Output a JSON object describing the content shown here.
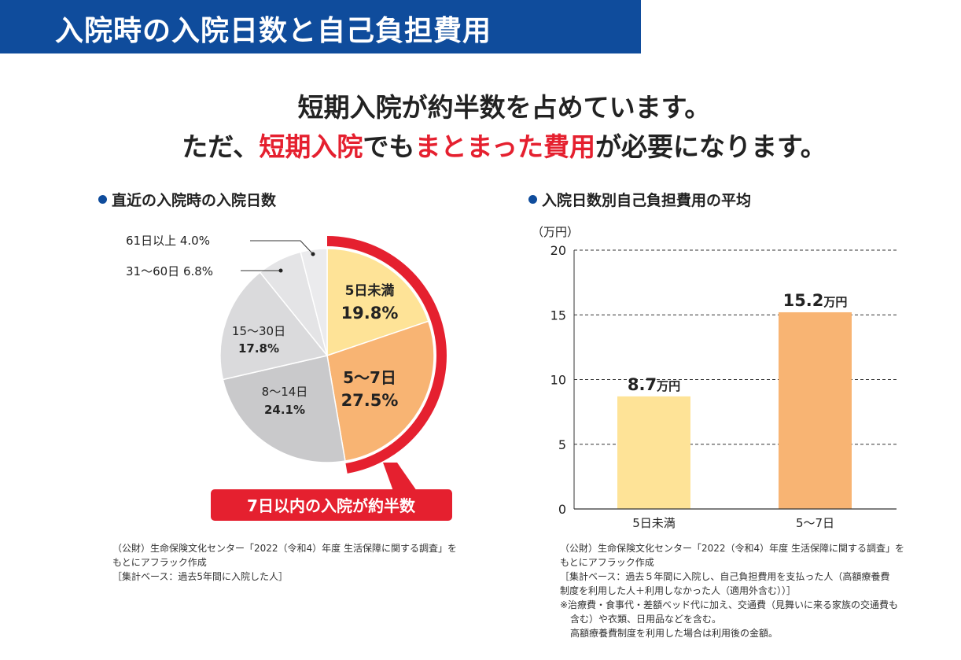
{
  "header": {
    "title": "入院時の入院日数と自己負担費用"
  },
  "lead": {
    "line1": "短期入院が約半数を占めています。",
    "line2_parts": [
      "ただ、",
      "短期入院",
      "でも",
      "まとまった費用",
      "が必要になります。"
    ]
  },
  "colors": {
    "brand_blue": "#0f4c9c",
    "accent_red": "#e5202f",
    "yellow": "#fee397",
    "orange": "#f8b473",
    "gray1": "#c9c9cb",
    "gray2": "#dadadc",
    "gray3": "#e4e4e6",
    "gray4": "#ebebed"
  },
  "chart_data": [
    {
      "type": "pie",
      "title": "直近の入院時の入院日数",
      "slices": [
        {
          "label": "5日未満",
          "value": 19.8,
          "value_label": "19.8%",
          "color": "#fee397"
        },
        {
          "label": "5〜7日",
          "value": 27.5,
          "value_label": "27.5%",
          "color": "#f8b473"
        },
        {
          "label": "8〜14日",
          "value": 24.1,
          "value_label": "24.1%",
          "color": "#c9c9cb"
        },
        {
          "label": "15〜30日",
          "value": 17.8,
          "value_label": "17.8%",
          "color": "#dadadc"
        },
        {
          "label": "31〜60日",
          "value": 6.8,
          "value_label": "6.8%",
          "color": "#e4e4e6"
        },
        {
          "label": "61日以上",
          "value": 4.0,
          "value_label": "4.0%",
          "color": "#ebebed"
        }
      ],
      "highlight": "7日以内の入院が約半数",
      "source": [
        "（公財）生命保険文化センター「2022（令和4）年度 生活保障に関する調査」を",
        "もとにアフラック作成",
        "［集計ベース：過去5年間に入院した人］"
      ]
    },
    {
      "type": "bar",
      "title": "入院日数別自己負担費用の平均",
      "ylabel": "（万円）",
      "categories": [
        "5日未満",
        "5〜7日"
      ],
      "values": [
        8.7,
        15.2
      ],
      "value_labels": [
        "8.7",
        "15.2"
      ],
      "value_unit": "万円",
      "colors": [
        "#fee397",
        "#f8b473"
      ],
      "ylim": [
        0,
        20
      ],
      "yticks": [
        "0",
        "5",
        "10",
        "15",
        "20"
      ],
      "grid": true,
      "source": [
        "（公財）生命保険文化センター「2022（令和4）年度 生活保障に関する調査」を",
        "もとにアフラック作成",
        "［集計ベース：過去５年間に入院し、自己負担費用を支払った人（高額療養費",
        "制度を利用した人＋利用しなかった人（適用外含む））］",
        "※治療費・食事代・差額ベッド代に加え、交通費（見舞いに来る家族の交通費も",
        "含む）や衣類、日用品などを含む。",
        "高額療養費制度を利用した場合は利用後の金額。"
      ]
    }
  ]
}
